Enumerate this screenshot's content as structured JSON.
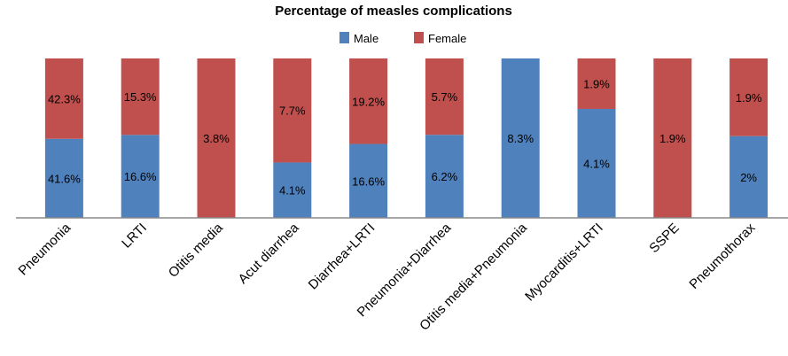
{
  "chart_data": {
    "type": "bar",
    "stacked": "100%",
    "title": "Percentage of measles complications",
    "legend_position": "top",
    "grid": false,
    "categories": [
      "Pneumonia",
      "LRTI",
      "Otitis media",
      "Acut diarrhea",
      "Diarrhea+LRTI",
      "Pneumonia+Diarrhea",
      "Otitis media+Pneumonia",
      "Myocarditis+LRTI",
      "SSPE",
      "Pneumothorax"
    ],
    "series": [
      {
        "name": "Male",
        "color": "#4F81BD",
        "values": [
          41.6,
          16.6,
          0,
          4.1,
          16.6,
          6.2,
          8.3,
          4.1,
          0,
          2
        ],
        "labels": [
          "41.6%",
          "16.6%",
          "",
          "4.1%",
          "16.6%",
          "6.2%",
          "8.3%",
          "4.1%",
          "",
          "2%"
        ]
      },
      {
        "name": "Female",
        "color": "#C0504D",
        "values": [
          42.3,
          15.3,
          3.8,
          7.7,
          19.2,
          5.7,
          0,
          1.9,
          1.9,
          1.9
        ],
        "labels": [
          "42.3%",
          "15.3%",
          "3.8%",
          "7.7%",
          "19.2%",
          "5.7%",
          "",
          "1.9%",
          "1.9%",
          "1.9%"
        ]
      }
    ]
  }
}
